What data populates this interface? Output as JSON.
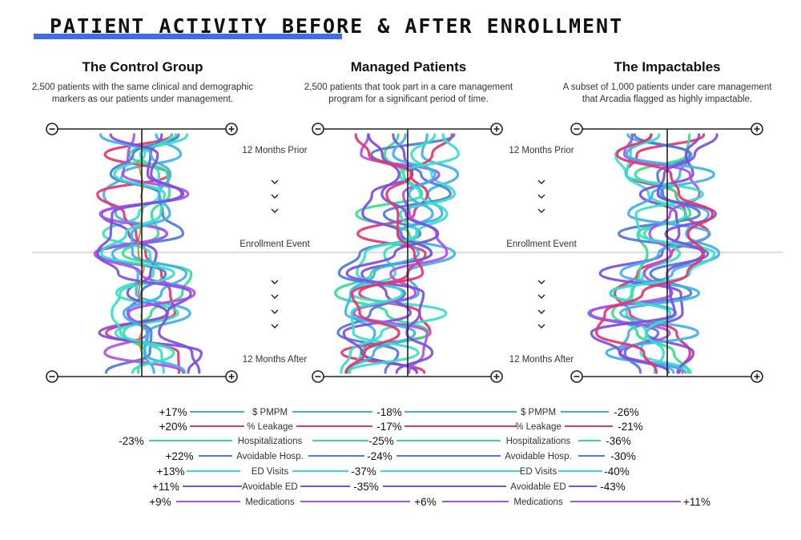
{
  "title": "PATIENT ACTIVITY BEFORE & AFTER ENROLLMENT",
  "columns": [
    {
      "title": "The Control Group",
      "description_line1": "2,500 patients with the same clinical and demographic",
      "description_line2": "markers as our patients under management."
    },
    {
      "title": "Managed Patients",
      "description_line1": "2,500 patients that took part in a care management",
      "description_line2": "program for a significant period of time."
    },
    {
      "title": "The Impactables",
      "description_line1": "A subset of 1,000 patients under care management",
      "description_line2": "that Arcadia flagged as highly impactable."
    }
  ],
  "timeline": {
    "top_label": "12 Months Prior",
    "middle_label": "Enrollment Event",
    "bottom_label": "12 Months After"
  },
  "colors": {
    "pmpm": "#3fb0ec",
    "leakage": "#e8336d",
    "hospitalizations": "#35de8f",
    "avoidable_hosp": "#4f78dc",
    "ed_visits": "#35e0c8",
    "avoidable_ed": "#7b4fe0",
    "medications": "#b24fe8",
    "control_extra": "#b8913a",
    "accent": "#3e6fe0"
  },
  "metrics": [
    {
      "key": "pmpm",
      "label": "$ PMPM",
      "control": "+17%",
      "managed": "-18%",
      "impact": "-26%"
    },
    {
      "key": "leakage",
      "label": "% Leakage",
      "control": "+20%",
      "managed": "-17%",
      "impact": "-21%"
    },
    {
      "key": "hospitalizations",
      "label": "Hospitalizations",
      "control": "-23%",
      "managed": "-25%",
      "impact": "-36%"
    },
    {
      "key": "avoidable_hosp",
      "label": "Avoidable Hosp.",
      "control": "+22%",
      "managed": "-24%",
      "impact": "-30%"
    },
    {
      "key": "ed_visits",
      "label": "ED Visits",
      "control": "+13%",
      "managed": "-37%",
      "impact": "-40%"
    },
    {
      "key": "avoidable_ed",
      "label": "Avoidable ED",
      "control": "+11%",
      "managed": "-35%",
      "impact": "-43%"
    },
    {
      "key": "medications",
      "label": "Medications",
      "control": "+9%",
      "managed": "+6%",
      "impact": "+11%"
    }
  ]
}
